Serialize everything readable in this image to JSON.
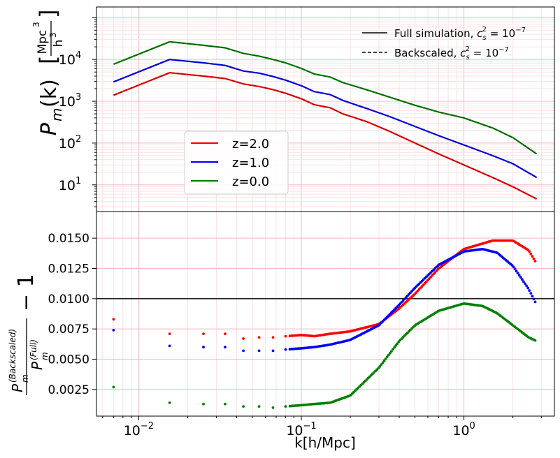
{
  "chart_data": [
    {
      "panel": "top",
      "type": "line",
      "xscale": "log",
      "yscale": "log",
      "xlim": [
        0.0055,
        3.6
      ],
      "ylim": [
        2.3,
        180000
      ],
      "grid": true,
      "ylabel_main": "P",
      "ylabel_sub": "m",
      "ylabel_arg": "(k)",
      "ylabel_unit_num": "Mpc",
      "ylabel_unit_num_exp": "3",
      "ylabel_unit_den": "h",
      "ylabel_unit_den_exp": "3",
      "yticks": [
        {
          "value": 10,
          "base": "10",
          "exp": "1"
        },
        {
          "value": 100,
          "base": "10",
          "exp": "2"
        },
        {
          "value": 1000,
          "base": "10",
          "exp": "3"
        },
        {
          "value": 10000,
          "base": "10",
          "exp": "4"
        }
      ],
      "style_legend": {
        "position": "upper-right",
        "entries": [
          {
            "label": "Full simulation, ",
            "math": "c",
            "math_sub": "s",
            "math_sup": "2",
            "math_rest": " = 10",
            "math_rest_sup": "−7",
            "style": "solid"
          },
          {
            "label": "Backscaled, ",
            "math": "c",
            "math_sub": "s",
            "math_sup": "2",
            "math_rest": " = 10",
            "math_rest_sup": "−7",
            "style": "dashed"
          }
        ]
      },
      "color_legend": {
        "position": "lower-left",
        "entries": [
          {
            "label": "z=2.0",
            "color": "#ff0000"
          },
          {
            "label": "z=1.0",
            "color": "#0000ff"
          },
          {
            "label": "z=0.0",
            "color": "#008000"
          }
        ]
      },
      "series": [
        {
          "name": "z=2.0",
          "color": "#ff0000",
          "overlay_color": "#8b0000",
          "x": [
            0.007,
            0.0155,
            0.025,
            0.034,
            0.044,
            0.055,
            0.067,
            0.08,
            0.1,
            0.12,
            0.15,
            0.18,
            0.25,
            0.35,
            0.5,
            0.7,
            1.0,
            1.5,
            2.0,
            2.8
          ],
          "y": [
            1400,
            4800,
            4000,
            3500,
            2600,
            2250,
            1900,
            1550,
            1150,
            830,
            700,
            500,
            330,
            190,
            100,
            55,
            30,
            15,
            9,
            4.6
          ]
        },
        {
          "name": "z=1.0",
          "color": "#0000ff",
          "x": [
            0.007,
            0.0155,
            0.025,
            0.034,
            0.044,
            0.055,
            0.067,
            0.08,
            0.1,
            0.12,
            0.15,
            0.18,
            0.25,
            0.35,
            0.5,
            0.7,
            1.0,
            1.5,
            2.0,
            2.8
          ],
          "y": [
            2900,
            10000,
            8300,
            7200,
            5300,
            4700,
            3900,
            3200,
            2350,
            1700,
            1450,
            1050,
            680,
            430,
            250,
            150,
            90,
            50,
            32,
            15
          ]
        },
        {
          "name": "z=0.0",
          "color": "#008000",
          "x": [
            0.007,
            0.0155,
            0.025,
            0.034,
            0.044,
            0.055,
            0.067,
            0.08,
            0.1,
            0.12,
            0.15,
            0.18,
            0.25,
            0.35,
            0.5,
            0.7,
            1.0,
            1.5,
            2.0,
            2.8
          ],
          "y": [
            7700,
            26500,
            21800,
            19000,
            14000,
            12000,
            10000,
            8300,
            6100,
            4500,
            3800,
            2800,
            1900,
            1250,
            800,
            550,
            400,
            230,
            135,
            55
          ]
        }
      ]
    },
    {
      "panel": "bottom",
      "type": "scatter",
      "xscale": "log",
      "xlim": [
        0.0055,
        3.6
      ],
      "ylim": [
        0.0003,
        0.0172
      ],
      "grid": true,
      "hline": 0.01,
      "xlabel": "k[h/Mpc]",
      "xticks": [
        {
          "value": 0.01,
          "base": "10",
          "exp": "−2"
        },
        {
          "value": 0.1,
          "base": "10",
          "exp": "−1"
        },
        {
          "value": 1,
          "base": "10",
          "exp": "0"
        }
      ],
      "yticks": [
        "0.0025",
        "0.0050",
        "0.0075",
        "0.0100",
        "0.0125",
        "0.0150"
      ],
      "ylabel_num": "P",
      "ylabel_num_sub": "m",
      "ylabel_num_sup": "(Backscaled)",
      "ylabel_den": "P",
      "ylabel_den_sub": "m",
      "ylabel_den_sup": "(Full)",
      "ylabel_suffix": "− 1",
      "series": [
        {
          "name": "z=2.0",
          "color": "#ff0000",
          "x": [
            0.007,
            0.0155,
            0.025,
            0.034,
            0.044,
            0.055,
            0.067,
            0.08,
            0.1,
            0.12,
            0.15,
            0.2,
            0.3,
            0.4,
            0.5,
            0.7,
            1.0,
            1.5,
            2.0,
            2.5,
            2.8
          ],
          "y": [
            0.0083,
            0.0071,
            0.0071,
            0.0071,
            0.0067,
            0.0068,
            0.0068,
            0.0069,
            0.007,
            0.0069,
            0.0071,
            0.0073,
            0.0079,
            0.0092,
            0.0104,
            0.0125,
            0.0141,
            0.0148,
            0.0148,
            0.014,
            0.0129
          ]
        },
        {
          "name": "z=1.0",
          "color": "#0000ff",
          "x": [
            0.007,
            0.0155,
            0.025,
            0.034,
            0.044,
            0.055,
            0.067,
            0.08,
            0.1,
            0.12,
            0.15,
            0.2,
            0.3,
            0.4,
            0.5,
            0.7,
            1.0,
            1.3,
            1.6,
            2.0,
            2.5,
            2.8
          ],
          "y": [
            0.0074,
            0.0061,
            0.006,
            0.006,
            0.0057,
            0.0057,
            0.0057,
            0.0058,
            0.0059,
            0.006,
            0.0062,
            0.0066,
            0.0078,
            0.0095,
            0.0109,
            0.0128,
            0.0139,
            0.0141,
            0.0138,
            0.0127,
            0.0108,
            0.0095
          ]
        },
        {
          "name": "z=0.0",
          "color": "#008000",
          "x": [
            0.007,
            0.0155,
            0.025,
            0.034,
            0.044,
            0.055,
            0.067,
            0.08,
            0.1,
            0.12,
            0.15,
            0.2,
            0.3,
            0.4,
            0.5,
            0.7,
            1.0,
            1.3,
            1.6,
            2.0,
            2.5,
            2.8
          ],
          "y": [
            0.0027,
            0.0014,
            0.0013,
            0.0013,
            0.0011,
            0.0011,
            0.001,
            0.0011,
            0.0012,
            0.0013,
            0.0014,
            0.002,
            0.0043,
            0.0065,
            0.0078,
            0.009,
            0.0096,
            0.0094,
            0.0088,
            0.0078,
            0.0068,
            0.0065
          ]
        }
      ]
    }
  ]
}
